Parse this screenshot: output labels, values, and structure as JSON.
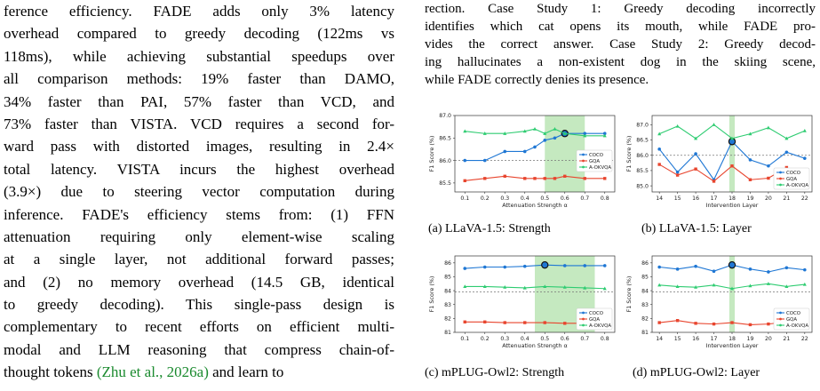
{
  "left_text": {
    "lines": [
      "ference efficiency. FADE adds only 3% latency",
      "overhead compared to greedy decoding (122ms vs",
      "118ms), while achieving substantial speedups over",
      "all comparison methods: 19% faster than DAMO,",
      "34% faster than PAI, 57% faster than VCD, and",
      "73% faster than VISTA. VCD requires a second for-",
      "ward pass with distorted images, resulting in 2.4×",
      "total latency. VISTA incurs the highest overhead",
      "(3.9×) due to steering vector computation during",
      "inference. FADE's efficiency stems from: (1) FFN",
      "attenuation requiring only element-wise scaling",
      "at a single layer, not additional forward passes;",
      "and (2) no memory overhead (14.5 GB, identical",
      "to greedy decoding). This single-pass design is",
      "complementary to recent efforts on efficient multi-",
      "modal and LLM reasoning that compress chain-of-"
    ],
    "last_line_prefix": "thought tokens",
    "last_line_cite": "(Zhu et al., 2026a)",
    "last_line_suffix": "and learn to"
  },
  "caption": {
    "lines": [
      "rection. Case Study 1: Greedy decoding incorrectly",
      "identifies which cat opens its mouth, while FADE pro-",
      "vides the correct answer. Case Study 2: Greedy decod-",
      "ing hallucinates a non-existent dog in the skiing scene,",
      "while FADE correctly denies its presence."
    ]
  },
  "colors": {
    "coco": "#1f77d4",
    "gqa": "#e8452e",
    "aokvqa": "#2ecc71",
    "highlight": "#b7e4b0",
    "citation": "#1a8a2e"
  },
  "chart_data": [
    {
      "type": "line",
      "caption": "(a) LLaVA-1.5: Strength",
      "xlabel": "Attenuation Strength α",
      "ylabel": "F1 Score (%)",
      "x": [
        0.1,
        0.2,
        0.3,
        0.4,
        0.45,
        0.5,
        0.55,
        0.6,
        0.7,
        0.8
      ],
      "x_ticks": [
        "0.1",
        "0.2",
        "0.3",
        "0.4",
        "0.5",
        "0.6",
        "0.7",
        "0.8"
      ],
      "x_tick_values": [
        0.1,
        0.2,
        0.3,
        0.4,
        0.5,
        0.6,
        0.7,
        0.8
      ],
      "xlim": [
        0.05,
        0.85
      ],
      "ylim": [
        85.3,
        87.0
      ],
      "y_ticks": [
        85.5,
        86.0,
        86.5,
        87.0
      ],
      "y_tick_labels": [
        "85.5",
        "86.0",
        "86.5",
        "87.0"
      ],
      "baseline": 86.0,
      "highlight_range": [
        0.5,
        0.7
      ],
      "best_series": "COCO",
      "best_x": 0.6,
      "legend": "center-right",
      "series": [
        {
          "name": "COCO",
          "values": [
            86.0,
            86.0,
            86.2,
            86.2,
            86.3,
            86.45,
            86.5,
            86.6,
            86.6,
            86.6
          ]
        },
        {
          "name": "GQA",
          "values": [
            85.55,
            85.6,
            85.65,
            85.6,
            85.6,
            85.6,
            85.6,
            85.65,
            85.6,
            85.6
          ]
        },
        {
          "name": "A-OKVQA",
          "values": [
            86.65,
            86.6,
            86.6,
            86.65,
            86.7,
            86.6,
            86.7,
            86.6,
            86.55,
            86.55
          ]
        }
      ]
    },
    {
      "type": "line",
      "caption": "(b) LLaVA-1.5: Layer",
      "xlabel": "Intervention Layer",
      "ylabel": "F1 Score (%)",
      "x": [
        14,
        15,
        16,
        17,
        18,
        19,
        20,
        21,
        22
      ],
      "x_ticks": [
        "14",
        "15",
        "16",
        "17",
        "18",
        "19",
        "20",
        "21",
        "22"
      ],
      "x_tick_values": [
        14,
        15,
        16,
        17,
        18,
        19,
        20,
        21,
        22
      ],
      "xlim": [
        13.6,
        22.4
      ],
      "ylim": [
        84.8,
        87.3
      ],
      "y_ticks": [
        85.0,
        85.5,
        86.0,
        86.5,
        87.0
      ],
      "y_tick_labels": [
        "85.0",
        "85.5",
        "86.0",
        "86.5",
        "87.0"
      ],
      "baseline": 86.0,
      "highlight_range": [
        17.85,
        18.15
      ],
      "best_series": "COCO",
      "best_x": 18,
      "legend": "lower-right",
      "series": [
        {
          "name": "COCO",
          "values": [
            86.2,
            85.45,
            86.05,
            85.2,
            86.45,
            85.85,
            85.65,
            86.1,
            85.9
          ]
        },
        {
          "name": "GQA",
          "values": [
            85.7,
            85.35,
            85.55,
            85.15,
            85.65,
            85.2,
            85.25,
            85.6,
            85.05
          ]
        },
        {
          "name": "A-OKVQA",
          "values": [
            86.7,
            86.95,
            86.55,
            87.0,
            86.55,
            86.7,
            86.9,
            86.55,
            86.8
          ]
        }
      ]
    },
    {
      "type": "line",
      "caption": "(c) mPLUG-Owl2: Strength",
      "xlabel": "Attenuation Strength α",
      "ylabel": "F1 Score (%)",
      "x": [
        0.1,
        0.2,
        0.3,
        0.4,
        0.5,
        0.6,
        0.7,
        0.8
      ],
      "x_ticks": [
        "0.1",
        "0.2",
        "0.3",
        "0.4",
        "0.5",
        "0.6",
        "0.7",
        "0.8"
      ],
      "x_tick_values": [
        0.1,
        0.2,
        0.3,
        0.4,
        0.5,
        0.6,
        0.7,
        0.8
      ],
      "xlim": [
        0.05,
        0.85
      ],
      "ylim": [
        81.0,
        86.5
      ],
      "y_ticks": [
        81,
        82,
        83,
        84,
        85,
        86
      ],
      "y_tick_labels": [
        "81",
        "82",
        "83",
        "84",
        "85",
        "86"
      ],
      "baseline": 83.9,
      "highlight_range": [
        0.45,
        0.75
      ],
      "best_series": "COCO",
      "best_x": 0.5,
      "legend": "lower-right",
      "series": [
        {
          "name": "COCO",
          "values": [
            85.6,
            85.7,
            85.7,
            85.75,
            85.85,
            85.8,
            85.8,
            85.8
          ]
        },
        {
          "name": "GQA",
          "values": [
            81.75,
            81.75,
            81.7,
            81.7,
            81.7,
            81.65,
            81.65,
            81.6
          ]
        },
        {
          "name": "A-OKVQA",
          "values": [
            84.3,
            84.3,
            84.25,
            84.2,
            84.3,
            84.25,
            84.2,
            84.15
          ]
        }
      ]
    },
    {
      "type": "line",
      "caption": "(d) mPLUG-Owl2: Layer",
      "xlabel": "Intervention Layer",
      "ylabel": "F1 Score (%)",
      "x": [
        14,
        15,
        16,
        17,
        18,
        19,
        20,
        21,
        22
      ],
      "x_ticks": [
        "14",
        "15",
        "16",
        "17",
        "18",
        "19",
        "20",
        "21",
        "22"
      ],
      "x_tick_values": [
        14,
        15,
        16,
        17,
        18,
        19,
        20,
        21,
        22
      ],
      "xlim": [
        13.6,
        22.4
      ],
      "ylim": [
        81.0,
        86.5
      ],
      "y_ticks": [
        81,
        82,
        83,
        84,
        85,
        86
      ],
      "y_tick_labels": [
        "81",
        "82",
        "83",
        "84",
        "85",
        "86"
      ],
      "baseline": 83.9,
      "highlight_range": [
        17.85,
        18.15
      ],
      "best_series": "COCO",
      "best_x": 18,
      "legend": "lower-right",
      "series": [
        {
          "name": "COCO",
          "values": [
            85.7,
            85.55,
            85.75,
            85.4,
            85.85,
            85.55,
            85.35,
            85.65,
            85.5
          ]
        },
        {
          "name": "GQA",
          "values": [
            81.7,
            81.85,
            81.65,
            81.6,
            81.7,
            81.55,
            81.6,
            81.75,
            81.85
          ]
        },
        {
          "name": "A-OKVQA",
          "values": [
            84.4,
            84.3,
            84.25,
            84.4,
            84.15,
            84.35,
            84.5,
            84.3,
            84.45
          ]
        }
      ]
    }
  ]
}
